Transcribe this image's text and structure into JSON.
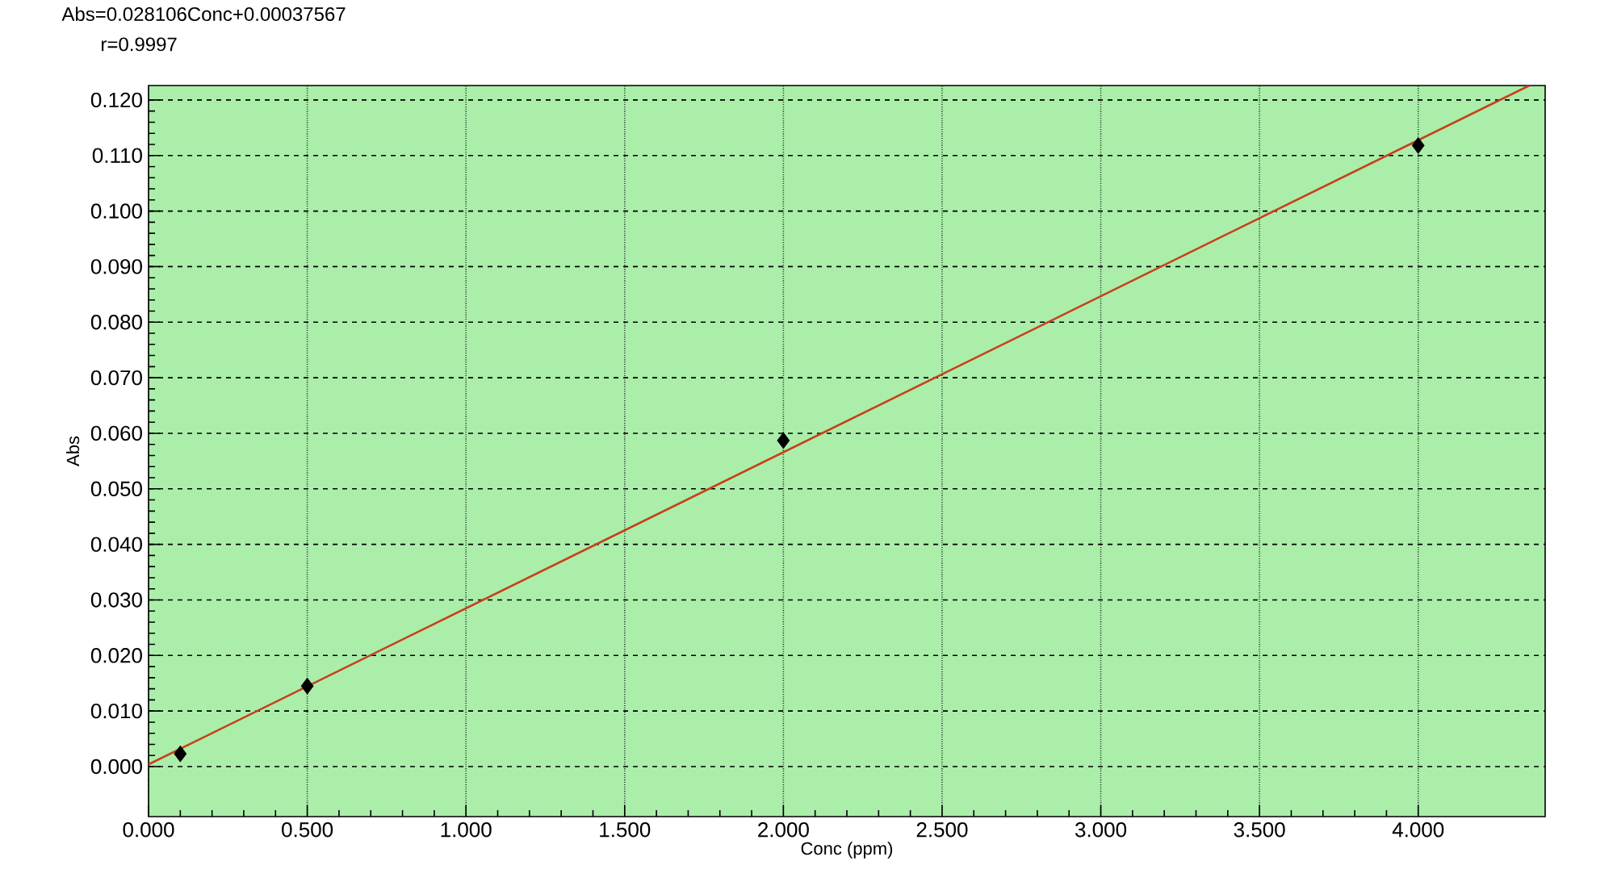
{
  "chart_data": {
    "type": "scatter",
    "xlabel": "Conc (ppm)",
    "ylabel": "Abs",
    "annotations": [
      "Abs=0.028106Conc+0.00037567",
      "r=0.9997"
    ],
    "xlim": [
      0,
      4.4
    ],
    "ylim": [
      -0.009,
      0.1226
    ],
    "xticks": [
      {
        "value": 0,
        "label": "0.000"
      },
      {
        "value": 0.5,
        "label": "0.500"
      },
      {
        "value": 1,
        "label": "1.000"
      },
      {
        "value": 1.5,
        "label": "1.500"
      },
      {
        "value": 2,
        "label": "2.000"
      },
      {
        "value": 2.5,
        "label": "2.500"
      },
      {
        "value": 3,
        "label": "3.000"
      },
      {
        "value": 3.5,
        "label": "3.500"
      },
      {
        "value": 4,
        "label": "4.000"
      }
    ],
    "yticks": [
      {
        "value": 0,
        "label": "0.000"
      },
      {
        "value": 0.01,
        "label": "0.010"
      },
      {
        "value": 0.02,
        "label": "0.020"
      },
      {
        "value": 0.03,
        "label": "0.030"
      },
      {
        "value": 0.04,
        "label": "0.040"
      },
      {
        "value": 0.05,
        "label": "0.050"
      },
      {
        "value": 0.06,
        "label": "0.060"
      },
      {
        "value": 0.07,
        "label": "0.070"
      },
      {
        "value": 0.08,
        "label": "0.080"
      },
      {
        "value": 0.09,
        "label": "0.090"
      },
      {
        "value": 0.1,
        "label": "0.100"
      },
      {
        "value": 0.11,
        "label": "0.110"
      },
      {
        "value": 0.12,
        "label": "0.120"
      }
    ],
    "grid": true,
    "series": [
      {
        "type": "line",
        "color": "#c8401a",
        "marker": "none",
        "line_style": "solid",
        "x": [
          0,
          4.35
        ],
        "values": [
          0.0004,
          0.1226
        ]
      },
      {
        "color": "#000000",
        "marker": "diamond",
        "x": [
          0.1,
          0.5,
          2.0,
          4.0
        ],
        "values": [
          0.0023,
          0.0145,
          0.0587,
          0.1118
        ]
      }
    ]
  }
}
